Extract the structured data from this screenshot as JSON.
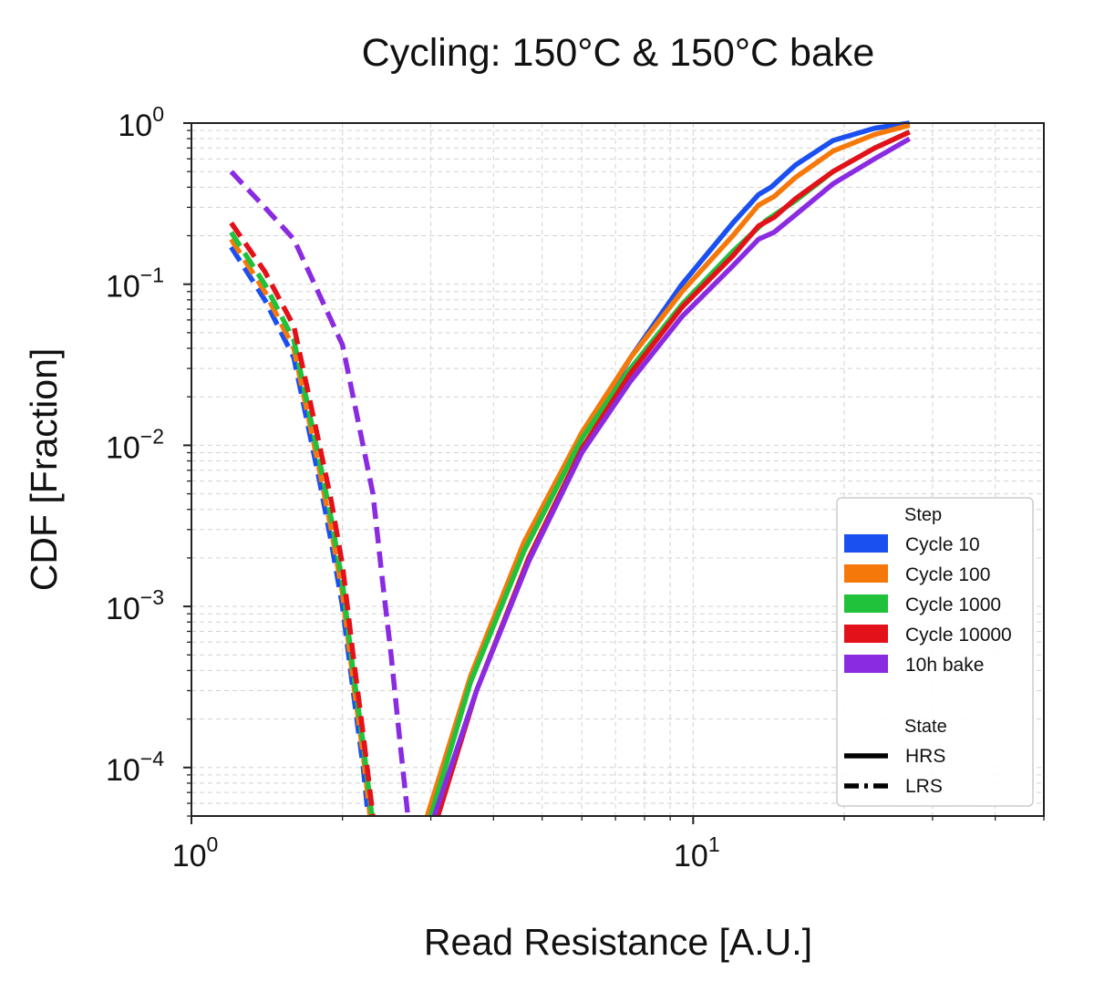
{
  "chart_data": {
    "type": "line",
    "title": "Cycling: 150°C & 150°C bake",
    "xlabel": "Read Resistance [A.U.]",
    "ylabel": "CDF [Fraction]",
    "xscale": "log",
    "yscale": "log",
    "xlim": [
      1,
      50
    ],
    "ylim": [
      5e-05,
      1
    ],
    "x_ticks": [
      {
        "base": "10",
        "exp": "0",
        "value": 1
      },
      {
        "base": "10",
        "exp": "1",
        "value": 10
      }
    ],
    "y_ticks": [
      {
        "base": "10",
        "exp": "0",
        "value": 1
      },
      {
        "base": "10",
        "exp": "−1",
        "value": 0.1
      },
      {
        "base": "10",
        "exp": "−2",
        "value": 0.01
      },
      {
        "base": "10",
        "exp": "−3",
        "value": 0.001
      },
      {
        "base": "10",
        "exp": "−4",
        "value": 0.0001
      }
    ],
    "grid": true,
    "legend": {
      "placement": "lower-right",
      "step_title": "Step",
      "state_title": "State",
      "steps": [
        {
          "name": "Cycle 10",
          "color": "#1a4ff0"
        },
        {
          "name": "Cycle 100",
          "color": "#f5790a"
        },
        {
          "name": "Cycle 1000",
          "color": "#1fc23a"
        },
        {
          "name": "Cycle 10000",
          "color": "#e3111a"
        },
        {
          "name": "10h bake",
          "color": "#8a2be2"
        }
      ],
      "states": [
        {
          "name": "HRS",
          "style": "solid"
        },
        {
          "name": "LRS",
          "style": "dashed"
        }
      ]
    },
    "series": [
      {
        "name": "Cycle 10",
        "state": "HRS",
        "color": "#1a4ff0",
        "style": "solid",
        "x": [
          3.0,
          3.6,
          4.6,
          6.0,
          7.5,
          9.5,
          12.0,
          13.5,
          14.3,
          16.0,
          19.0,
          23.0,
          27.0
        ],
        "y": [
          5e-05,
          0.00035,
          0.0023,
          0.011,
          0.035,
          0.1,
          0.24,
          0.36,
          0.4,
          0.55,
          0.78,
          0.93,
          1.0
        ]
      },
      {
        "name": "Cycle 100",
        "state": "HRS",
        "color": "#f5790a",
        "style": "solid",
        "x": [
          2.95,
          3.6,
          4.6,
          6.0,
          7.5,
          9.5,
          12.0,
          13.5,
          14.5,
          16.0,
          19.0,
          23.0,
          27.0
        ],
        "y": [
          5e-05,
          0.00037,
          0.0025,
          0.012,
          0.035,
          0.09,
          0.2,
          0.31,
          0.35,
          0.46,
          0.67,
          0.85,
          0.97
        ]
      },
      {
        "name": "Cycle 1000",
        "state": "HRS",
        "color": "#1fc23a",
        "style": "solid",
        "x": [
          3.0,
          3.6,
          4.6,
          6.0,
          7.5,
          9.5,
          12.0,
          14.0,
          16.0,
          19.0,
          23.0,
          27.0
        ],
        "y": [
          5e-05,
          0.00034,
          0.0022,
          0.011,
          0.03,
          0.075,
          0.16,
          0.25,
          0.33,
          0.5,
          0.7,
          0.88
        ]
      },
      {
        "name": "Cycle 10000",
        "state": "HRS",
        "color": "#e3111a",
        "style": "solid",
        "x": [
          3.1,
          3.7,
          4.7,
          6.0,
          7.5,
          9.5,
          12.0,
          13.5,
          14.5,
          16.0,
          19.0,
          23.0,
          27.0
        ],
        "y": [
          5e-05,
          0.0003,
          0.002,
          0.0095,
          0.028,
          0.072,
          0.15,
          0.23,
          0.26,
          0.34,
          0.5,
          0.7,
          0.88
        ]
      },
      {
        "name": "10h bake",
        "state": "HRS",
        "color": "#8a2be2",
        "style": "solid",
        "x": [
          3.05,
          3.7,
          4.7,
          6.0,
          7.5,
          9.5,
          12.0,
          13.5,
          14.5,
          16.0,
          19.0,
          23.0,
          27.0
        ],
        "y": [
          5e-05,
          0.0003,
          0.0019,
          0.009,
          0.025,
          0.063,
          0.13,
          0.19,
          0.21,
          0.27,
          0.42,
          0.6,
          0.8
        ]
      },
      {
        "name": "Cycle 10",
        "state": "LRS",
        "color": "#1a4ff0",
        "style": "dashed",
        "x": [
          1.2,
          1.4,
          1.6,
          1.8,
          1.9,
          2.0,
          2.1,
          2.2,
          2.25
        ],
        "y": [
          0.17,
          0.08,
          0.035,
          0.006,
          0.0025,
          0.001,
          0.0003,
          0.0001,
          5e-05
        ]
      },
      {
        "name": "Cycle 100",
        "state": "LRS",
        "color": "#f5790a",
        "style": "dashed",
        "x": [
          1.2,
          1.4,
          1.6,
          1.8,
          1.9,
          2.0,
          2.1,
          2.2,
          2.27
        ],
        "y": [
          0.19,
          0.09,
          0.04,
          0.007,
          0.003,
          0.0012,
          0.00035,
          0.00012,
          5e-05
        ]
      },
      {
        "name": "Cycle 1000",
        "state": "LRS",
        "color": "#1fc23a",
        "style": "dashed",
        "x": [
          1.2,
          1.4,
          1.6,
          1.8,
          1.9,
          2.0,
          2.1,
          2.2,
          2.29
        ],
        "y": [
          0.21,
          0.1,
          0.045,
          0.008,
          0.0035,
          0.0014,
          0.0004,
          0.00014,
          5e-05
        ]
      },
      {
        "name": "Cycle 10000",
        "state": "LRS",
        "color": "#e3111a",
        "style": "dashed",
        "x": [
          1.2,
          1.4,
          1.6,
          1.8,
          1.9,
          2.0,
          2.1,
          2.2,
          2.3
        ],
        "y": [
          0.24,
          0.12,
          0.055,
          0.01,
          0.0045,
          0.0018,
          0.0005,
          0.00016,
          5e-05
        ]
      },
      {
        "name": "10h bake",
        "state": "LRS",
        "color": "#8a2be2",
        "style": "dashed",
        "x": [
          1.2,
          1.4,
          1.6,
          2.0,
          2.3,
          2.4,
          2.5,
          2.6,
          2.7
        ],
        "y": [
          0.5,
          0.3,
          0.19,
          0.042,
          0.005,
          0.0015,
          0.0005,
          0.00015,
          5e-05
        ]
      }
    ]
  }
}
